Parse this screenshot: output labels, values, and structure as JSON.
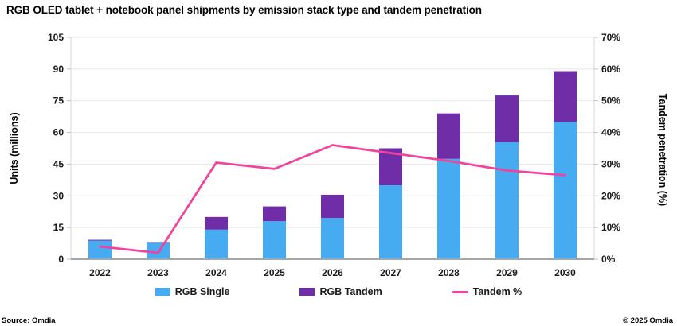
{
  "title": "RGB OLED tablet + notebook panel shipments by emission stack type and tandem penetration",
  "footer": {
    "source": "Source: Omdia",
    "copyright": "© 2025 Omdia"
  },
  "colors": {
    "rgb_single": "#47ABF2",
    "rgb_tandem": "#6F2DA8",
    "tandem_line": "#F0439B",
    "grid": "#E8E8E8",
    "axis_light": "#D9D9D9",
    "axis_dark": "#A6A6A6",
    "tick": "#BFBFBF",
    "text": "#1A1A1A"
  },
  "legend": {
    "items": [
      {
        "label": "RGB Single"
      },
      {
        "label": "RGB Tandem"
      },
      {
        "label": "Tandem %"
      }
    ]
  },
  "chart_data": {
    "type": "combo_stacked_bar_line",
    "title": "RGB OLED tablet + notebook panel shipments by emission stack type and tandem penetration",
    "categories": [
      "2022",
      "2023",
      "2024",
      "2025",
      "2026",
      "2027",
      "2028",
      "2029",
      "2030"
    ],
    "series": [
      {
        "name": "RGB Single",
        "type": "bar",
        "stack": "units",
        "axis": "left",
        "color_key": "rgb_single",
        "values": [
          8.8,
          7.9,
          14,
          18,
          19.5,
          35,
          47.5,
          55.5,
          65
        ]
      },
      {
        "name": "RGB Tandem",
        "type": "bar",
        "stack": "units",
        "axis": "left",
        "color_key": "rgb_tandem",
        "values": [
          0.4,
          0.2,
          6,
          7,
          11,
          17.5,
          21.5,
          22,
          24
        ]
      },
      {
        "name": "Tandem %",
        "type": "line",
        "axis": "right",
        "color_key": "tandem_line",
        "values": [
          4,
          2,
          30.5,
          28.5,
          36,
          33.5,
          31,
          28,
          26.5
        ]
      }
    ],
    "left_axis": {
      "label": "Units (millions)",
      "min": 0,
      "max": 105,
      "step": 15,
      "ticks": [
        "0",
        "15",
        "30",
        "45",
        "60",
        "75",
        "90",
        "105"
      ]
    },
    "right_axis": {
      "label": "Tandem penetration (%)",
      "min": 0,
      "max": 70,
      "step": 10,
      "ticks": [
        "0%",
        "10%",
        "20%",
        "30%",
        "40%",
        "50%",
        "60%",
        "70%"
      ]
    },
    "grid": true,
    "legend_position": "bottom"
  }
}
